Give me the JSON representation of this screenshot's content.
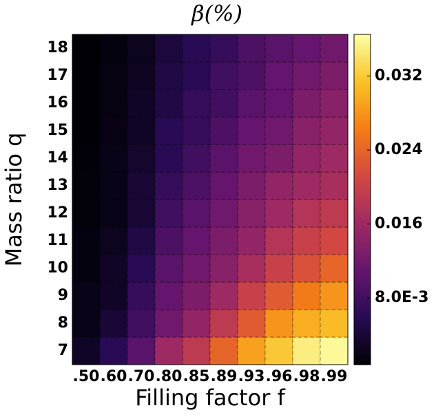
{
  "chart_data": {
    "type": "heatmap",
    "title": "β(%)",
    "x_label": "Filling factor f",
    "y_label": "Mass ratio q",
    "x_categories": [
      ".50",
      ".60",
      ".70",
      ".80",
      ".85",
      ".89",
      ".93",
      ".96",
      ".98",
      ".99"
    ],
    "y_categories": [
      7,
      8,
      9,
      10,
      11,
      12,
      13,
      14,
      15,
      16,
      17,
      18
    ],
    "values": [
      [
        0.003,
        0.006,
        0.01,
        0.016,
        0.019,
        0.024,
        0.029,
        0.032,
        0.035,
        0.036
      ],
      [
        0.002,
        0.004,
        0.008,
        0.012,
        0.015,
        0.019,
        0.023,
        0.028,
        0.03,
        0.031
      ],
      [
        0.002,
        0.003,
        0.007,
        0.011,
        0.013,
        0.016,
        0.02,
        0.023,
        0.026,
        0.028
      ],
      [
        0.0015,
        0.003,
        0.006,
        0.01,
        0.012,
        0.014,
        0.017,
        0.02,
        0.022,
        0.024
      ],
      [
        0.0015,
        0.0025,
        0.005,
        0.009,
        0.011,
        0.013,
        0.015,
        0.018,
        0.02,
        0.021
      ],
      [
        0.0012,
        0.002,
        0.004,
        0.008,
        0.01,
        0.012,
        0.014,
        0.016,
        0.018,
        0.019
      ],
      [
        0.0012,
        0.002,
        0.004,
        0.007,
        0.009,
        0.011,
        0.013,
        0.015,
        0.016,
        0.017
      ],
      [
        0.0011,
        0.002,
        0.0035,
        0.006,
        0.008,
        0.01,
        0.012,
        0.013,
        0.015,
        0.016
      ],
      [
        0.001,
        0.0018,
        0.003,
        0.006,
        0.007,
        0.009,
        0.011,
        0.012,
        0.014,
        0.015
      ],
      [
        0.001,
        0.0017,
        0.003,
        0.005,
        0.007,
        0.008,
        0.01,
        0.011,
        0.013,
        0.014
      ],
      [
        0.001,
        0.0016,
        0.0028,
        0.005,
        0.006,
        0.008,
        0.009,
        0.011,
        0.012,
        0.013
      ],
      [
        0.001,
        0.0015,
        0.0025,
        0.0045,
        0.006,
        0.007,
        0.009,
        0.01,
        0.011,
        0.012
      ]
    ],
    "colormap": "inferno",
    "clim": [
      0.0008,
      0.0365
    ],
    "cticks": [
      {
        "value": 0.008,
        "label": "8.0E-3"
      },
      0.016,
      0.024,
      0.032
    ],
    "grid": true
  }
}
